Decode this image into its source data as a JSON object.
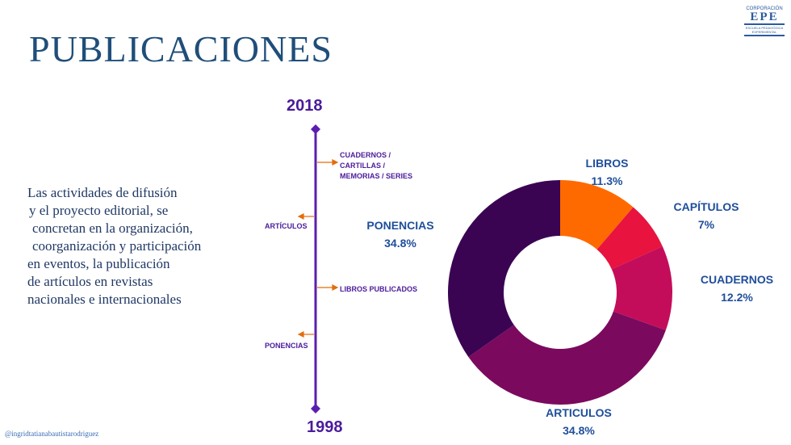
{
  "title": "PUBLICACIONES",
  "logo": {
    "line1": "CORPORACIÓN",
    "line2": "EPE",
    "line3": "ESCUELA PEDAGÓGICA",
    "line4": "EXPERIMENTAL"
  },
  "body_lines": [
    "Las actividades de difusión",
    "y el proyecto editorial,  se",
    "concretan en la organización,",
    "coorganización y participación",
    "en eventos, la publicación",
    "de artículos  en revistas",
    "nacionales e internacionales"
  ],
  "timeline": {
    "top_year": "2018",
    "bottom_year": "1998",
    "items": [
      {
        "lines": [
          "CUADERNOS /",
          "CARTILLAS /",
          "MEMORIAS / SERIES"
        ]
      },
      {
        "lines": [
          "ARTÍCULOS"
        ]
      },
      {
        "lines": [
          "LIBROS PUBLICADOS"
        ]
      },
      {
        "lines": [
          "PONENCIAS"
        ]
      }
    ],
    "line_color": "#5b1fb0",
    "arrow_color": "#e46c0a"
  },
  "chart_data": {
    "type": "pie",
    "donut": true,
    "slices": [
      {
        "label": "LIBROS",
        "value": 11.3,
        "display": "11.3%",
        "color": "#ff6a00"
      },
      {
        "label": "CAPÍTULOS",
        "value": 7,
        "display": "7%",
        "color": "#e8133f"
      },
      {
        "label": "CUADERNOS",
        "value": 12.2,
        "display": "12.2%",
        "color": "#c40d5a"
      },
      {
        "label": "ARTICULOS",
        "value": 34.8,
        "display": "34.8%",
        "color": "#7b0a5e"
      },
      {
        "label": "PONENCIAS",
        "value": 34.8,
        "display": "34.8%",
        "color": "#3a0452"
      }
    ]
  },
  "footer": "@ingridtatianabautistarodriguez"
}
